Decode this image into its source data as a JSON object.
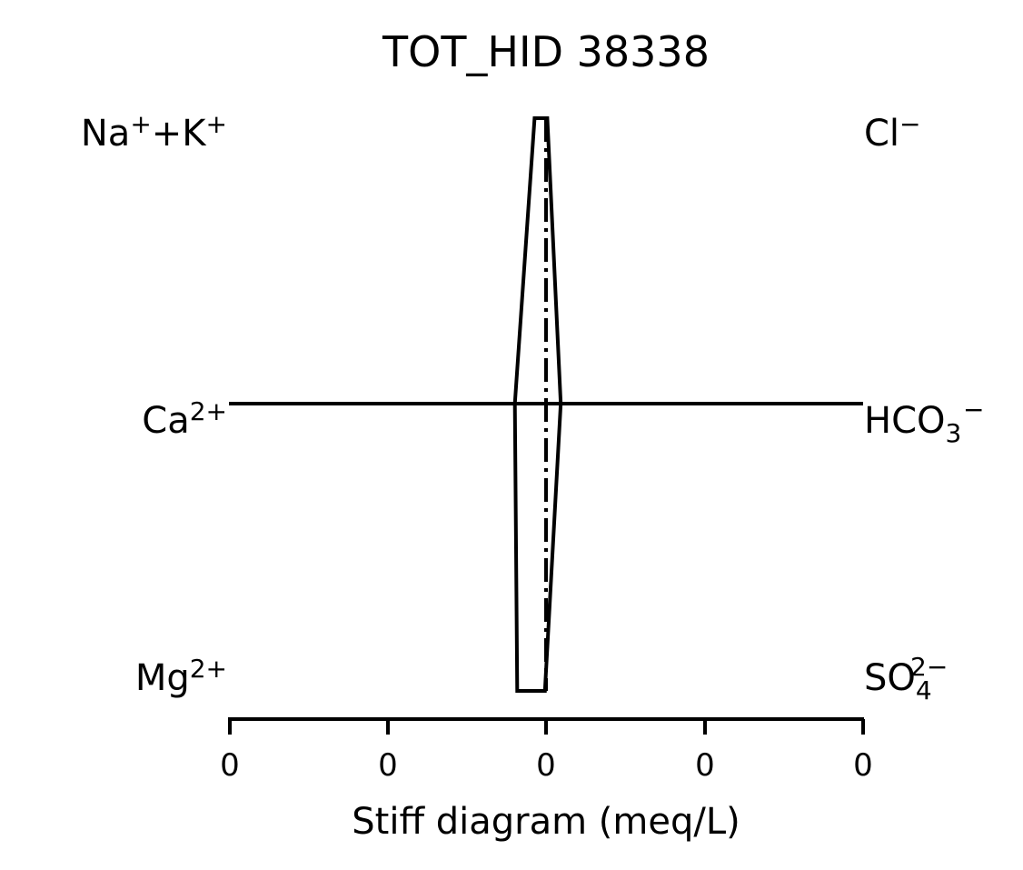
{
  "chart_data": {
    "type": "stiff",
    "title": "TOT_HID 38338",
    "xlabel": "Stiff diagram (meq/L)",
    "x_tick_labels": [
      "0",
      "0",
      "0",
      "0",
      "0"
    ],
    "xlim": [
      -0.4,
      0.4
    ],
    "cation_labels": {
      "row1": {
        "base": "Na",
        "sup": "+",
        "mid": "+K",
        "sup2": "+"
      },
      "row2": {
        "base": "Ca",
        "sup": "2+"
      },
      "row3": {
        "base": "Mg",
        "sup": "2+"
      }
    },
    "anion_labels": {
      "row1": {
        "base": "Cl",
        "sup": "−"
      },
      "row2": {
        "base": "HCO",
        "sub": "3",
        "sup": "−"
      },
      "row3": {
        "base": "SO",
        "sub": "4",
        "sup": "2−"
      }
    },
    "cations": [
      {
        "ion": "Na+K",
        "value": -0.015
      },
      {
        "ion": "Ca",
        "value": -0.04
      },
      {
        "ion": "Mg",
        "value": -0.037
      }
    ],
    "anions": [
      {
        "ion": "Cl",
        "value": 0.001
      },
      {
        "ion": "HCO3",
        "value": 0.018
      },
      {
        "ion": "SO4",
        "value": -0.002
      }
    ],
    "colors": {
      "line": "#000000",
      "background": "#ffffff"
    }
  }
}
